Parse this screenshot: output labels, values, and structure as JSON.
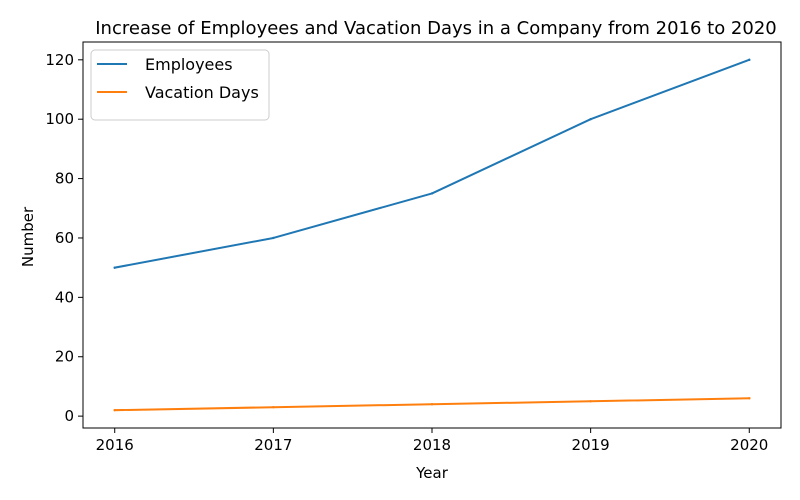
{
  "chart_data": {
    "type": "line",
    "title": "Increase of Employees and Vacation Days in a Company from 2016 to 2020",
    "xlabel": "Year",
    "ylabel": "Number",
    "x": [
      2016,
      2017,
      2018,
      2019,
      2020
    ],
    "x_ticks": [
      "2016",
      "2017",
      "2018",
      "2019",
      "2020"
    ],
    "y_ticks": [
      0,
      20,
      40,
      60,
      80,
      100,
      120
    ],
    "xlim": [
      2015.8,
      2020.2
    ],
    "ylim": [
      -4.0,
      126.0
    ],
    "grid": false,
    "legend_position": "top-left",
    "series": [
      {
        "name": "Employees",
        "color": "#1f77b4",
        "values": [
          50,
          60,
          75,
          100,
          120
        ]
      },
      {
        "name": "Vacation Days",
        "color": "#ff7f0e",
        "values": [
          2,
          3,
          4,
          5,
          6
        ]
      }
    ]
  }
}
